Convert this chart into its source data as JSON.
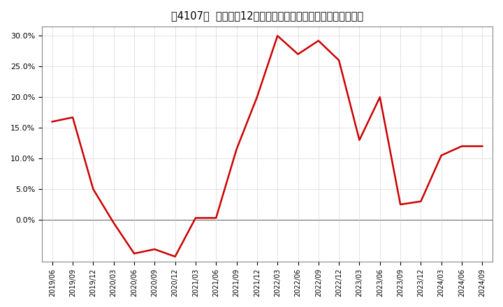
{
  "title_bracket": "［4107］  売上高の12か月移動合計の対前年同期増減率の推移",
  "line_color": "#cc0000",
  "background_color": "#ffffff",
  "plot_bg_color": "#ffffff",
  "grid_color": "#aaaaaa",
  "x_labels": [
    "2019/06",
    "2019/09",
    "2019/12",
    "2020/03",
    "2020/06",
    "2020/09",
    "2020/12",
    "2021/03",
    "2021/06",
    "2021/09",
    "2021/12",
    "2022/03",
    "2022/06",
    "2022/09",
    "2022/12",
    "2023/03",
    "2023/06",
    "2023/09",
    "2023/12",
    "2024/03",
    "2024/06",
    "2024/09"
  ],
  "y_values": [
    0.16,
    0.167,
    0.05,
    -0.005,
    -0.055,
    -0.048,
    -0.06,
    0.003,
    0.003,
    0.115,
    0.2,
    0.3,
    0.27,
    0.292,
    0.26,
    0.13,
    0.2,
    0.025,
    0.03,
    0.105,
    0.12,
    0.12
  ],
  "ylim": [
    -0.068,
    0.315
  ],
  "yticks": [
    0.0,
    0.05,
    0.1,
    0.15,
    0.2,
    0.25,
    0.3
  ],
  "line_width": 1.8,
  "figsize": [
    7.2,
    4.4
  ],
  "dpi": 100,
  "title_fontsize": 10.5
}
